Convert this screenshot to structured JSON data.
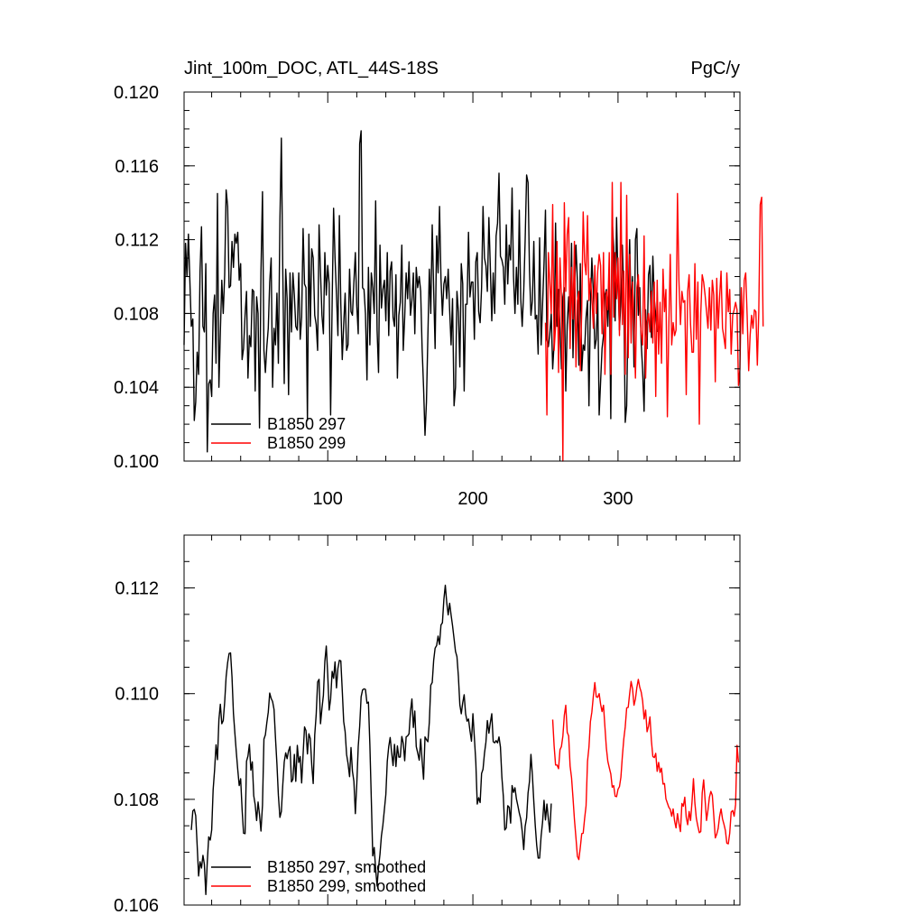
{
  "chart_data": [
    {
      "type": "line",
      "title_left": "Jint_100m_DOC, ATL_44S-18S",
      "title_right": "PgC/y",
      "xlim": [
        1,
        384
      ],
      "ylim": [
        0.1,
        0.12
      ],
      "y_ticks": [
        0.1,
        0.104,
        0.108,
        0.112,
        0.116,
        0.12
      ],
      "y_tick_labels": [
        "0.100",
        "0.104",
        "0.108",
        "0.112",
        "0.116",
        "0.120"
      ],
      "x_ticks": [
        100,
        200,
        300
      ],
      "x_tick_labels": [
        "100",
        "200",
        "300"
      ],
      "legend_position": "bottom-left",
      "series": [
        {
          "name": "B1850 297",
          "color": "#000000",
          "x_start": 1,
          "values": [
            0.1063,
            0.1118,
            0.11,
            0.1123,
            0.1098,
            0.1073,
            0.1077,
            0.1022,
            0.1032,
            0.1059,
            0.1047,
            0.1103,
            0.1127,
            0.1073,
            0.107,
            0.1107,
            0.1005,
            0.1042,
            0.1044,
            0.1035,
            0.108,
            0.109,
            0.1053,
            0.1145,
            0.104,
            0.107,
            0.1098,
            0.108,
            0.1101,
            0.1147,
            0.1138,
            0.1094,
            0.1095,
            0.1119,
            0.1105,
            0.1123,
            0.1118,
            0.1124,
            0.1098,
            0.1107,
            0.1055,
            0.1061,
            0.1079,
            0.1092,
            0.1045,
            0.1068,
            0.1062,
            0.1093,
            0.1092,
            0.1038,
            0.1089,
            0.108,
            0.1018,
            0.1102,
            0.1146,
            0.106,
            0.1048,
            0.1062,
            0.1072,
            0.1097,
            0.111,
            0.104,
            0.1072,
            0.1063,
            0.1091,
            0.1053,
            0.113,
            0.1175,
            0.1103,
            0.1042,
            0.1104,
            0.1088,
            0.1036,
            0.1102,
            0.107,
            0.1102,
            0.109,
            0.1073,
            0.1071,
            0.1102,
            0.1066,
            0.1078,
            0.1126,
            0.1096,
            0.1094,
            0.1022,
            0.1123,
            0.1073,
            0.1115,
            0.111,
            0.1079,
            0.1074,
            0.106,
            0.1128,
            0.1102,
            0.1079,
            0.1069,
            0.1113,
            0.109,
            0.1106,
            0.1096,
            0.1025,
            0.1086,
            0.1137,
            0.111,
            0.109,
            0.1068,
            0.1133,
            0.1085,
            0.1055,
            0.1074,
            0.1091,
            0.106,
            0.1063,
            0.1104,
            0.1081,
            0.1079,
            0.1097,
            0.1113,
            0.1084,
            0.1069,
            0.1172,
            0.1179,
            0.1094,
            0.1093,
            0.108,
            0.1044,
            0.1105,
            0.1063,
            0.1102,
            0.1094,
            0.108,
            0.1141,
            0.1071,
            0.1048,
            0.1117,
            0.1083,
            0.1093,
            0.1098,
            0.1076,
            0.1113,
            0.1068,
            0.1103,
            0.1108,
            0.1078,
            0.1073,
            0.1101,
            0.1045,
            0.1079,
            0.1086,
            0.1117,
            0.106,
            0.1078,
            0.1102,
            0.1088,
            0.1108,
            0.1079,
            0.1087,
            0.1102,
            0.1069,
            0.1105,
            0.1094,
            0.11,
            0.1092,
            0.1061,
            0.104,
            0.1014,
            0.1032,
            0.1068,
            0.1104,
            0.108,
            0.1128,
            0.1093,
            0.1061,
            0.1122,
            0.1102,
            0.1138,
            0.1099,
            0.1079,
            0.1096,
            0.11,
            0.1088,
            0.1104,
            0.1082,
            0.1063,
            0.1088,
            0.103,
            0.104,
            0.1092,
            0.1081,
            0.1051,
            0.1107,
            0.1096,
            0.1038,
            0.1085,
            0.1085,
            0.1124,
            0.1089,
            0.1097,
            0.1097,
            0.1066,
            0.1108,
            0.1113,
            0.1081,
            0.1075,
            0.1094,
            0.1138,
            0.111,
            0.1106,
            0.1092,
            0.1132,
            0.1105,
            0.1076,
            0.1102,
            0.108,
            0.1122,
            0.1129,
            0.1156,
            0.1111,
            0.1109,
            0.1105,
            0.1085,
            0.1128,
            0.1096,
            0.1117,
            0.1109,
            0.1148,
            0.11,
            0.108,
            0.1105,
            0.1085,
            0.1136,
            0.1088,
            0.1073,
            0.1092,
            0.112,
            0.1155,
            0.1151,
            0.1103,
            0.1079,
            0.1087,
            0.1119,
            0.1077,
            0.1079,
            0.1058,
            0.1121,
            0.1063,
            0.1085,
            0.1107,
            0.1136,
            0.1066,
            0.1062,
            0.1069,
            0.108,
            0.105,
            0.1064,
            0.1129,
            0.1073,
            0.1093,
            0.1072,
            0.105,
            0.1089,
            0.1094,
            0.1038,
            0.1074,
            0.1089,
            0.1069,
            0.1118,
            0.1056,
            0.1091,
            0.1117,
            0.1097,
            0.1052,
            0.1107,
            0.1049,
            0.1063,
            0.106,
            0.1078,
            0.1087,
            0.103,
            0.1084,
            0.111,
            0.1091,
            0.1061,
            0.1066,
            0.1091,
            0.1025,
            0.1043,
            0.1061,
            0.1068,
            0.109,
            0.1093,
            0.1073,
            0.1099,
            0.1023,
            0.113,
            0.1116,
            0.1076,
            0.1132,
            0.1097,
            0.1071,
            0.1087,
            0.1117,
            0.1089,
            0.1021,
            0.103,
            0.1087,
            0.112,
            0.1082,
            0.11,
            0.1051,
            0.112,
            0.1126,
            0.1079,
            0.1094,
            0.1064,
            0.1049,
            0.1027,
            0.1082,
            0.1061,
            0.1101,
            0.1106,
            0.1067,
            0.1111,
            0.1088,
            0.1079,
            0.107
          ]
        },
        {
          "name": "B1850 299",
          "color": "#ff0000",
          "x_start": 250,
          "values": [
            0.1075,
            0.1025,
            0.1113,
            0.1097,
            0.108,
            0.1139,
            0.106,
            0.1073,
            0.1119,
            0.1048,
            0.111,
            0.1089,
            0.1,
            0.114,
            0.1092,
            0.1123,
            0.1132,
            0.1061,
            0.1105,
            0.1077,
            0.1119,
            0.1051,
            0.1087,
            0.1092,
            0.1049,
            0.1082,
            0.1135,
            0.1108,
            0.1101,
            0.1133,
            0.1087,
            0.1099,
            0.1089,
            0.1072,
            0.1106,
            0.108,
            0.1103,
            0.1112,
            0.1106,
            0.1069,
            0.1113,
            0.1047,
            0.1092,
            0.1082,
            0.1113,
            0.1047,
            0.1151,
            0.1078,
            0.1113,
            0.1088,
            0.111,
            0.1068,
            0.1151,
            0.1074,
            0.1103,
            0.1047,
            0.1144,
            0.1056,
            0.1112,
            0.1064,
            0.1097,
            0.1073,
            0.1045,
            0.1094,
            0.1101,
            0.1081,
            0.1069,
            0.1063,
            0.1122,
            0.1045,
            0.1075,
            0.108,
            0.107,
            0.1092,
            0.1064,
            0.1097,
            0.1035,
            0.1098,
            0.1058,
            0.1086,
            0.1053,
            0.1104,
            0.1081,
            0.1093,
            0.1024,
            0.1073,
            0.1112,
            0.1063,
            0.1075,
            0.1068,
            0.1071,
            0.1145,
            0.1098,
            0.1074,
            0.1092,
            0.1086,
            0.1087,
            0.1036,
            0.1092,
            0.1101,
            0.1074,
            0.1059,
            0.1059,
            0.1107,
            0.1066,
            0.1097,
            0.102,
            0.108,
            0.1101,
            0.1097,
            0.109,
            0.1081,
            0.1072,
            0.1094,
            0.1071,
            0.1098,
            0.109,
            0.1043,
            0.1099,
            0.1072,
            0.1089,
            0.1103,
            0.1072,
            0.1067,
            0.1061,
            0.1102,
            0.1081,
            0.1093,
            0.1058,
            0.1079,
            0.1082,
            0.1086,
            0.1082,
            0.1041,
            0.105,
            0.1094,
            0.1069,
            0.1098,
            0.1102,
            0.1079,
            0.1049,
            0.1068,
            0.1079,
            0.1072,
            0.1082,
            0.1081,
            0.1052,
            0.1081,
            0.1139,
            0.1143,
            0.1073
          ]
        }
      ]
    },
    {
      "type": "line",
      "xlim": [
        1,
        384
      ],
      "ylim": [
        0.106,
        0.113
      ],
      "y_ticks": [
        0.106,
        0.108,
        0.11,
        0.112
      ],
      "y_tick_labels": [
        "0.106",
        "0.108",
        "0.110",
        "0.112"
      ],
      "x_ticks": [
        100,
        200,
        300
      ],
      "x_tick_labels": [],
      "legend_position": "bottom-left",
      "series": [
        {
          "name": "B1850 297, smoothed",
          "color": "#000000",
          "x_start": 6,
          "values": [
            0.10742,
            0.10778,
            0.10781,
            0.10769,
            0.10713,
            0.10655,
            0.10682,
            0.1067,
            0.10694,
            0.10677,
            0.1062,
            0.10681,
            0.10729,
            0.10723,
            0.10742,
            0.10818,
            0.10855,
            0.10903,
            0.10875,
            0.10951,
            0.1098,
            0.10943,
            0.10949,
            0.10984,
            0.11032,
            0.11059,
            0.11076,
            0.11077,
            0.11032,
            0.10963,
            0.10925,
            0.10889,
            0.10856,
            0.10826,
            0.10839,
            0.10781,
            0.10736,
            0.10735,
            0.10872,
            0.10882,
            0.10904,
            0.10855,
            0.10871,
            0.10807,
            0.1079,
            0.1076,
            0.10795,
            0.10771,
            0.1074,
            0.10789,
            0.10914,
            0.10922,
            0.10945,
            0.10965,
            0.11001,
            0.10991,
            0.10985,
            0.1097,
            0.10916,
            0.10867,
            0.10808,
            0.10766,
            0.10777,
            0.10828,
            0.10871,
            0.10888,
            0.10877,
            0.10892,
            0.109,
            0.10833,
            0.10838,
            0.10885,
            0.10834,
            0.10902,
            0.1087,
            0.10881,
            0.10831,
            0.10885,
            0.10937,
            0.1093,
            0.10886,
            0.10924,
            0.10915,
            0.10865,
            0.1083,
            0.10922,
            0.1096,
            0.11022,
            0.11027,
            0.10943,
            0.10972,
            0.10997,
            0.11061,
            0.1109,
            0.11036,
            0.10969,
            0.1099,
            0.11042,
            0.11029,
            0.1106,
            0.11011,
            0.11048,
            0.11063,
            0.11062,
            0.11006,
            0.10947,
            0.10928,
            0.10885,
            0.10868,
            0.10843,
            0.10898,
            0.10853,
            0.10834,
            0.10773,
            0.10829,
            0.109,
            0.10938,
            0.10994,
            0.11007,
            0.11009,
            0.11008,
            0.10982,
            0.10984,
            0.10903,
            0.108,
            0.10693,
            0.10709,
            0.10668,
            0.10636,
            0.10671,
            0.10696,
            0.10731,
            0.10751,
            0.10781,
            0.10809,
            0.10872,
            0.109,
            0.10917,
            0.10889,
            0.10864,
            0.10904,
            0.10862,
            0.10901,
            0.1088,
            0.1088,
            0.10919,
            0.10906,
            0.10873,
            0.10918,
            0.1092,
            0.10924,
            0.10966,
            0.1099,
            0.10936,
            0.10967,
            0.109,
            0.10888,
            0.10874,
            0.10914,
            0.10873,
            0.10838,
            0.10918,
            0.10913,
            0.10909,
            0.10946,
            0.11016,
            0.11021,
            0.11063,
            0.11086,
            0.11091,
            0.11109,
            0.11093,
            0.1113,
            0.11134,
            0.11178,
            0.11205,
            0.11172,
            0.11149,
            0.11171,
            0.11149,
            0.11129,
            0.11104,
            0.1108,
            0.1107,
            0.11033,
            0.10979,
            0.10962,
            0.10983,
            0.10998,
            0.10962,
            0.10948,
            0.10952,
            0.1093,
            0.1091,
            0.10962,
            0.10917,
            0.10871,
            0.10791,
            0.10803,
            0.10794,
            0.10849,
            0.10857,
            0.10887,
            0.10908,
            0.10949,
            0.10925,
            0.10945,
            0.10962,
            0.10909,
            0.10907,
            0.10911,
            0.10907,
            0.10918,
            0.10899,
            0.10842,
            0.10806,
            0.10742,
            0.10746,
            0.10788,
            0.10785,
            0.10755,
            0.10826,
            0.10813,
            0.10822,
            0.10801,
            0.10788,
            0.10774,
            0.10763,
            0.1074,
            0.10705,
            0.10749,
            0.10765,
            0.10812,
            0.10834,
            0.10885,
            0.10846,
            0.10795,
            0.1075,
            0.10713,
            0.10689,
            0.10689,
            0.10731,
            0.10757,
            0.10798,
            0.10761,
            0.10791,
            0.10763,
            0.10738,
            0.10792
          ]
        },
        {
          "name": "B1850 299, smoothed",
          "color": "#ff0000",
          "x_start": 255,
          "values": [
            0.10951,
            0.10901,
            0.10865,
            0.10865,
            0.10858,
            0.10894,
            0.109,
            0.1092,
            0.10959,
            0.10978,
            0.10927,
            0.1092,
            0.10863,
            0.10841,
            0.10803,
            0.10762,
            0.10727,
            0.10692,
            0.10686,
            0.10709,
            0.10735,
            0.10736,
            0.10764,
            0.10788,
            0.10872,
            0.10899,
            0.10947,
            0.10965,
            0.10996,
            0.11021,
            0.10994,
            0.10993,
            0.11,
            0.1098,
            0.10966,
            0.10978,
            0.10937,
            0.10897,
            0.10872,
            0.1086,
            0.10848,
            0.10823,
            0.10826,
            0.10806,
            0.10805,
            0.10819,
            0.10824,
            0.10842,
            0.10881,
            0.10914,
            0.10937,
            0.10973,
            0.10974,
            0.11,
            0.11023,
            0.11009,
            0.10978,
            0.1099,
            0.11012,
            0.11027,
            0.11012,
            0.11003,
            0.10986,
            0.10952,
            0.10969,
            0.10928,
            0.10938,
            0.10956,
            0.10911,
            0.10881,
            0.10879,
            0.10887,
            0.10853,
            0.1087,
            0.10851,
            0.10859,
            0.10829,
            0.1083,
            0.10801,
            0.10793,
            0.10785,
            0.10781,
            0.10768,
            0.10782,
            0.10759,
            0.10746,
            0.10773,
            0.10755,
            0.10739,
            0.10792,
            0.10787,
            0.10804,
            0.10766,
            0.10752,
            0.10777,
            0.1076,
            0.10795,
            0.10839,
            0.10793,
            0.10764,
            0.10749,
            0.10737,
            0.10739,
            0.10812,
            0.10837,
            0.10799,
            0.1076,
            0.1078,
            0.10804,
            0.10815,
            0.10808,
            0.1077,
            0.10727,
            0.10734,
            0.10745,
            0.10768,
            0.10782,
            0.10763,
            0.10753,
            0.10741,
            0.10717,
            0.10716,
            0.10736,
            0.10776,
            0.10779,
            0.10768,
            0.1079,
            0.10902,
            0.1087
          ]
        }
      ]
    }
  ]
}
